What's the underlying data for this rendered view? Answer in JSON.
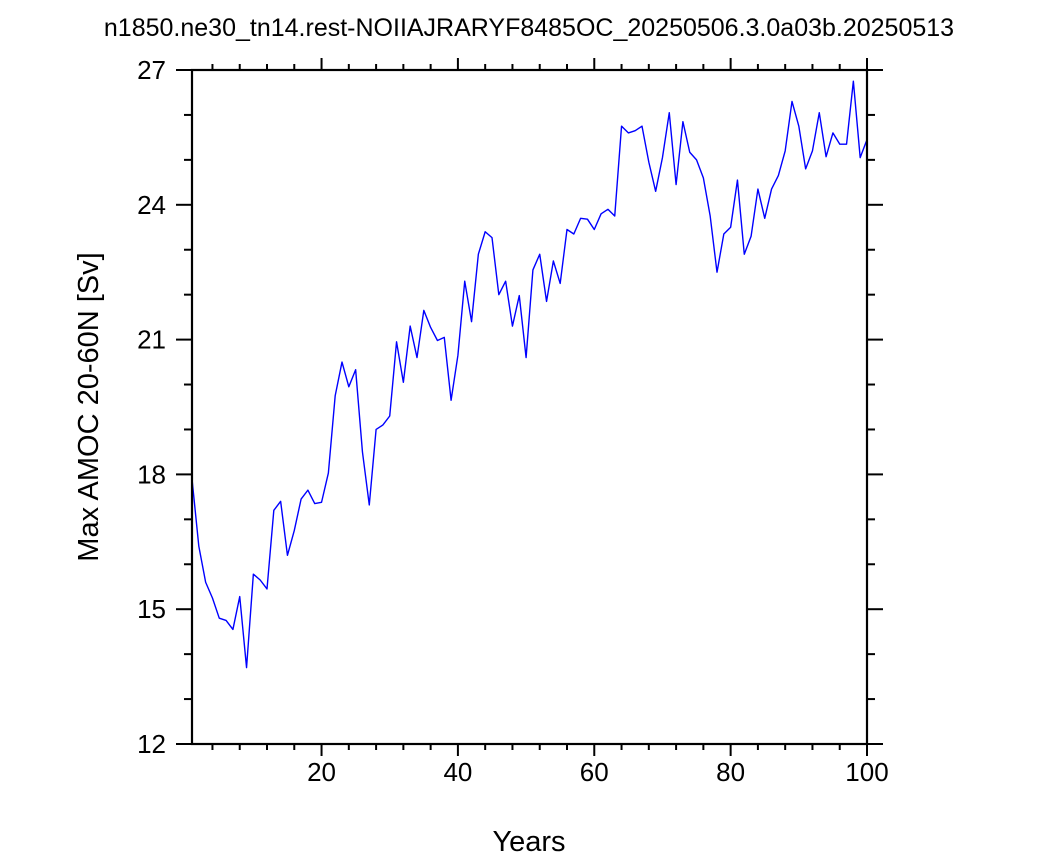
{
  "chart_data": {
    "type": "line",
    "title": "n1850.ne30_tn14.rest-NOIIAJRARYF8485OC_20250506.3.0a03b.20250513",
    "xlabel": "Years",
    "ylabel": "Max AMOC 20-60N [Sv]",
    "xlim": [
      1,
      100
    ],
    "ylim": [
      12,
      27
    ],
    "x_ticks": [
      "20",
      "40",
      "60",
      "80",
      "100"
    ],
    "y_ticks": [
      "12",
      "15",
      "18",
      "21",
      "24",
      "27"
    ],
    "grid": false,
    "legend": "none",
    "series_color": "#0000ff",
    "x": [
      1,
      2,
      3,
      4,
      5,
      6,
      7,
      8,
      9,
      10,
      11,
      12,
      13,
      14,
      15,
      16,
      17,
      18,
      19,
      20,
      21,
      22,
      23,
      24,
      25,
      26,
      27,
      28,
      29,
      30,
      31,
      32,
      33,
      34,
      35,
      36,
      37,
      38,
      39,
      40,
      41,
      42,
      43,
      44,
      45,
      46,
      47,
      48,
      49,
      50,
      51,
      52,
      53,
      54,
      55,
      56,
      57,
      58,
      59,
      60,
      61,
      62,
      63,
      64,
      65,
      66,
      67,
      68,
      69,
      70,
      71,
      72,
      73,
      74,
      75,
      76,
      77,
      78,
      79,
      80,
      81,
      82,
      83,
      84,
      85,
      86,
      87,
      88,
      89,
      90,
      91,
      92,
      93,
      94,
      95,
      96,
      97,
      98,
      99,
      100
    ],
    "y": [
      17.9,
      16.4,
      15.6,
      15.25,
      14.8,
      14.75,
      14.55,
      15.28,
      13.7,
      15.78,
      15.65,
      15.45,
      17.2,
      17.4,
      16.2,
      16.75,
      17.45,
      17.65,
      17.35,
      17.38,
      18.03,
      19.75,
      20.5,
      19.95,
      20.33,
      18.5,
      17.32,
      19.0,
      19.1,
      19.3,
      20.95,
      20.05,
      21.3,
      20.6,
      21.65,
      21.27,
      20.98,
      21.05,
      19.65,
      20.65,
      22.3,
      21.4,
      22.9,
      23.4,
      23.27,
      22.0,
      22.3,
      21.3,
      21.98,
      20.6,
      22.55,
      22.9,
      21.85,
      22.75,
      22.25,
      23.45,
      23.35,
      23.7,
      23.68,
      23.45,
      23.8,
      23.9,
      23.75,
      25.75,
      25.6,
      25.65,
      25.75,
      24.95,
      24.3,
      25.05,
      26.05,
      24.45,
      25.85,
      25.17,
      25.0,
      24.6,
      23.75,
      22.5,
      23.35,
      23.5,
      24.55,
      22.9,
      23.3,
      24.35,
      23.7,
      24.35,
      24.65,
      25.2,
      26.3,
      25.75,
      24.8,
      25.2,
      26.05,
      25.07,
      25.6,
      25.35,
      25.35,
      26.75,
      25.05,
      25.45
    ]
  }
}
